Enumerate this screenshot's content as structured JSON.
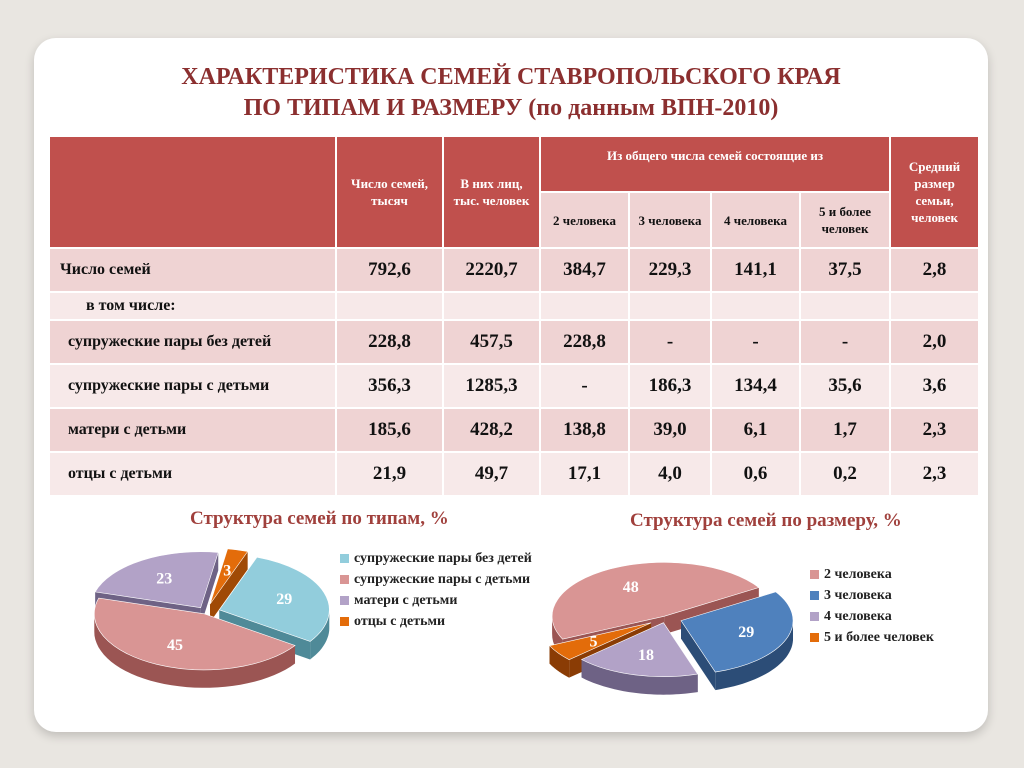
{
  "slide": {
    "title_line1": "ХАРАКТЕРИСТИКА СЕМЕЙ СТАВРОПОЛЬСКОГО КРАЯ",
    "title_line2": "ПО ТИПАМ И РАЗМЕРУ (по данным ВПН-2010)"
  },
  "table": {
    "headers": {
      "families": "Число семей, тысяч",
      "persons": "В них лиц, тыс. человек",
      "group": "Из общего числа семей состоящие из",
      "p2": "2 человека",
      "p3": "3 человека",
      "p4": "4 человека",
      "p5": "5 и более человек",
      "avg": "Средний размер семьи, человек"
    },
    "rows": [
      {
        "label": "Число семей",
        "values": [
          "792,6",
          "2220,7",
          "384,7",
          "229,3",
          "141,1",
          "37,5",
          "2,8"
        ]
      },
      {
        "label": "в том числе:",
        "values": [
          "",
          "",
          "",
          "",
          "",
          "",
          ""
        ]
      },
      {
        "label": "супружеские пары без детей",
        "values": [
          "228,8",
          "457,5",
          "228,8",
          "-",
          "-",
          "-",
          "2,0"
        ]
      },
      {
        "label": "супружеские пары  с детьми",
        "values": [
          "356,3",
          "1285,3",
          "-",
          "186,3",
          "134,4",
          "35,6",
          "3,6"
        ]
      },
      {
        "label": "матери с детьми",
        "values": [
          "185,6",
          "428,2",
          "138,8",
          "39,0",
          "6,1",
          "1,7",
          "2,3"
        ]
      },
      {
        "label": "отцы с детьми",
        "values": [
          "21,9",
          "49,7",
          "17,1",
          "4,0",
          "0,6",
          "0,2",
          "2,3"
        ]
      }
    ]
  },
  "chart_data": [
    {
      "type": "pie",
      "title": "Структура семей по типам, %",
      "legend_position": "right",
      "categories": [
        "супружеские пары без детей",
        "супружеские пары с детьми",
        "матери с детьми",
        "отцы с детьми"
      ],
      "values": [
        29,
        45,
        23,
        3
      ],
      "colors": [
        "#92cddc",
        "#d99594",
        "#b2a2c7",
        "#e36c0a"
      ],
      "side_colors": [
        "#4f8a98",
        "#9b5553",
        "#6e6285",
        "#a04a06"
      ]
    },
    {
      "type": "pie",
      "title": "Структура семей по размеру, %",
      "legend_position": "right",
      "categories": [
        "2 человека",
        "3 человека",
        "4 человека",
        "5 и более человек"
      ],
      "values": [
        48,
        29,
        18,
        5
      ],
      "colors": [
        "#d99594",
        "#4f81bd",
        "#b2a2c7",
        "#e36c0a"
      ],
      "side_colors": [
        "#9b5553",
        "#2c4d77",
        "#6e6285",
        "#8a3c05"
      ]
    }
  ]
}
